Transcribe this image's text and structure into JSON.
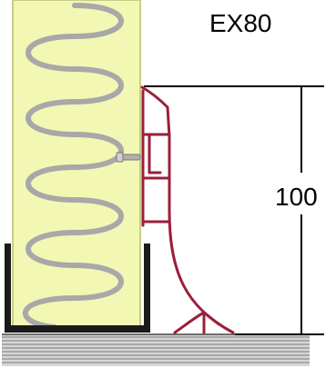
{
  "product": {
    "code": "EX80"
  },
  "dimension": {
    "value": "100"
  },
  "colors": {
    "insulation_fill": "#f2f7b3",
    "insulation_border": "#c8cc88",
    "coil": "#a8a8a8",
    "profile": "#9b1f3a",
    "channel": "#1a1a1a",
    "floor_fill": "#d6d6d6",
    "floor_lines": "#7a7a7a",
    "dimension_lines": "#000000"
  },
  "icons": {
    "fastener": "screw-icon"
  }
}
